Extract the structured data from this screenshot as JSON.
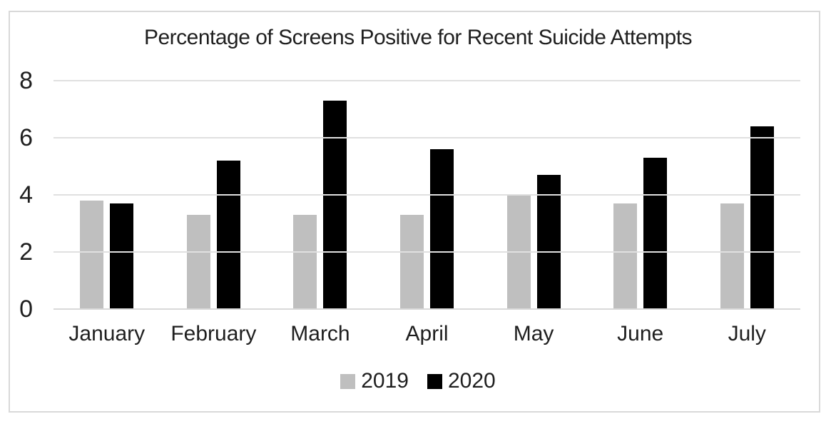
{
  "chart_data": {
    "type": "bar",
    "title": "Percentage of Screens Positive for Recent Suicide Attempts",
    "categories": [
      "January",
      "February",
      "March",
      "April",
      "May",
      "June",
      "July"
    ],
    "series": [
      {
        "name": "2019",
        "color": "#bfbfbf",
        "values": [
          3.8,
          3.3,
          3.3,
          3.3,
          4.0,
          3.7,
          3.7
        ]
      },
      {
        "name": "2020",
        "color": "#000000",
        "values": [
          3.7,
          5.2,
          7.3,
          5.6,
          4.7,
          5.3,
          6.4
        ]
      }
    ],
    "xlabel": "",
    "ylabel": "",
    "ylim": [
      0,
      8
    ],
    "yticks": [
      8,
      6,
      4,
      2,
      0
    ],
    "grid": true,
    "legend_position": "bottom"
  },
  "colors": {
    "gridline": "#e0e0e0",
    "axis_line": "#d9d9d9",
    "frame_border": "#d9d9d9",
    "text": "#1f1f1f",
    "background": "#ffffff"
  }
}
